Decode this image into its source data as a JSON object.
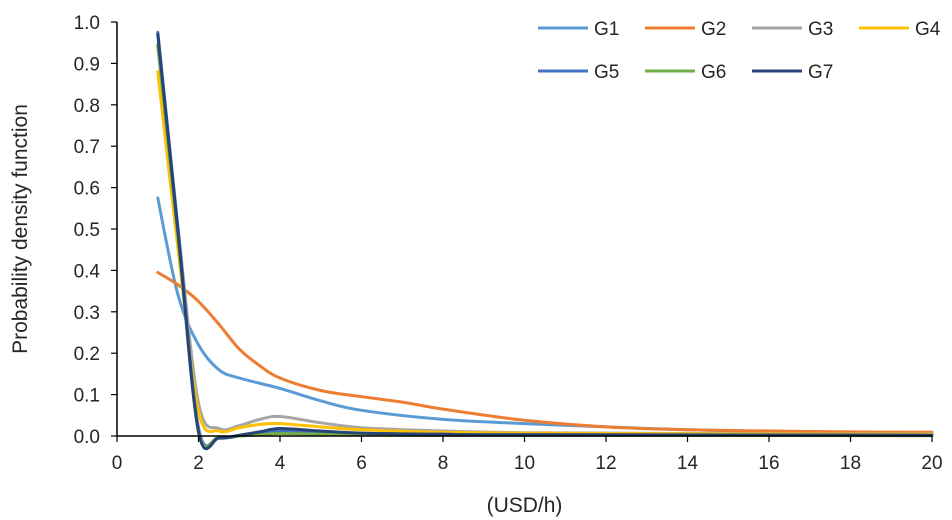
{
  "chart_data": {
    "type": "line",
    "title": "",
    "xlabel": "(USD/h)",
    "ylabel": "Probability density function",
    "xlim": [
      0,
      20
    ],
    "ylim": [
      0,
      1.0
    ],
    "x_ticks": [
      "0",
      "2",
      "4",
      "6",
      "8",
      "10",
      "12",
      "14",
      "16",
      "18",
      "20"
    ],
    "y_ticks": [
      "0.0",
      "0.1",
      "0.2",
      "0.3",
      "0.4",
      "0.5",
      "0.6",
      "0.7",
      "0.8",
      "0.9",
      "1.0"
    ],
    "grid": false,
    "legend_position": "top-right",
    "series": [
      {
        "name": "G1",
        "color": "#5B9BD5",
        "points": [
          [
            1,
            0.575
          ],
          [
            1.5,
            0.34
          ],
          [
            2,
            0.22
          ],
          [
            2.5,
            0.16
          ],
          [
            3,
            0.14
          ],
          [
            4,
            0.115
          ],
          [
            5,
            0.085
          ],
          [
            6,
            0.062
          ],
          [
            8,
            0.04
          ],
          [
            10,
            0.03
          ],
          [
            12,
            0.022
          ],
          [
            14,
            0.015
          ],
          [
            16,
            0.011
          ],
          [
            18,
            0.008
          ],
          [
            20,
            0.006
          ]
        ]
      },
      {
        "name": "G2",
        "color": "#ED7D31",
        "points": [
          [
            1,
            0.395
          ],
          [
            1.5,
            0.365
          ],
          [
            2,
            0.325
          ],
          [
            2.5,
            0.27
          ],
          [
            3,
            0.21
          ],
          [
            3.5,
            0.17
          ],
          [
            4,
            0.14
          ],
          [
            5,
            0.11
          ],
          [
            6,
            0.095
          ],
          [
            7,
            0.082
          ],
          [
            8,
            0.065
          ],
          [
            10,
            0.038
          ],
          [
            12,
            0.022
          ],
          [
            14,
            0.015
          ],
          [
            16,
            0.012
          ],
          [
            18,
            0.01
          ],
          [
            20,
            0.009
          ]
        ]
      },
      {
        "name": "G3",
        "color": "#A5A5A5",
        "points": [
          [
            1,
            0.94
          ],
          [
            1.5,
            0.5
          ],
          [
            2,
            0.08
          ],
          [
            2.5,
            0.018
          ],
          [
            3,
            0.025
          ],
          [
            3.5,
            0.04
          ],
          [
            4,
            0.047
          ],
          [
            5,
            0.032
          ],
          [
            6,
            0.02
          ],
          [
            8,
            0.012
          ],
          [
            10,
            0.008
          ],
          [
            14,
            0.006
          ],
          [
            20,
            0.005
          ]
        ]
      },
      {
        "name": "G4",
        "color": "#FFC000",
        "points": [
          [
            1,
            0.88
          ],
          [
            1.5,
            0.45
          ],
          [
            2,
            0.06
          ],
          [
            2.5,
            0.012
          ],
          [
            3,
            0.02
          ],
          [
            3.5,
            0.028
          ],
          [
            4,
            0.03
          ],
          [
            5,
            0.022
          ],
          [
            6,
            0.015
          ],
          [
            8,
            0.009
          ],
          [
            10,
            0.007
          ],
          [
            14,
            0.005
          ],
          [
            20,
            0.004
          ]
        ]
      },
      {
        "name": "G5",
        "color": "#4472C4",
        "points": [
          [
            1,
            0.975
          ],
          [
            1.5,
            0.5
          ],
          [
            2,
            0.02
          ],
          [
            2.5,
            -0.004
          ],
          [
            3,
            0.0
          ],
          [
            3.5,
            0.007
          ],
          [
            4,
            0.012
          ],
          [
            5,
            0.009
          ],
          [
            6,
            0.006
          ],
          [
            8,
            0.004
          ],
          [
            10,
            0.003
          ],
          [
            20,
            0.002
          ]
        ]
      },
      {
        "name": "G6",
        "color": "#70AD47",
        "points": [
          [
            1,
            0.945
          ],
          [
            1.5,
            0.48
          ],
          [
            2,
            0.015
          ],
          [
            2.5,
            -0.003
          ],
          [
            3,
            0.0
          ],
          [
            3.5,
            0.003
          ],
          [
            4,
            0.006
          ],
          [
            5,
            0.004
          ],
          [
            6,
            0.003
          ],
          [
            8,
            0.002
          ],
          [
            20,
            0.001
          ]
        ]
      },
      {
        "name": "G7",
        "color": "#264478",
        "points": [
          [
            1,
            0.97
          ],
          [
            1.5,
            0.49
          ],
          [
            2,
            0.01
          ],
          [
            2.5,
            -0.005
          ],
          [
            3,
            0.002
          ],
          [
            3.5,
            0.01
          ],
          [
            4,
            0.018
          ],
          [
            5,
            0.012
          ],
          [
            6,
            0.007
          ],
          [
            8,
            0.004
          ],
          [
            10,
            0.003
          ],
          [
            20,
            0.002
          ]
        ]
      }
    ]
  }
}
